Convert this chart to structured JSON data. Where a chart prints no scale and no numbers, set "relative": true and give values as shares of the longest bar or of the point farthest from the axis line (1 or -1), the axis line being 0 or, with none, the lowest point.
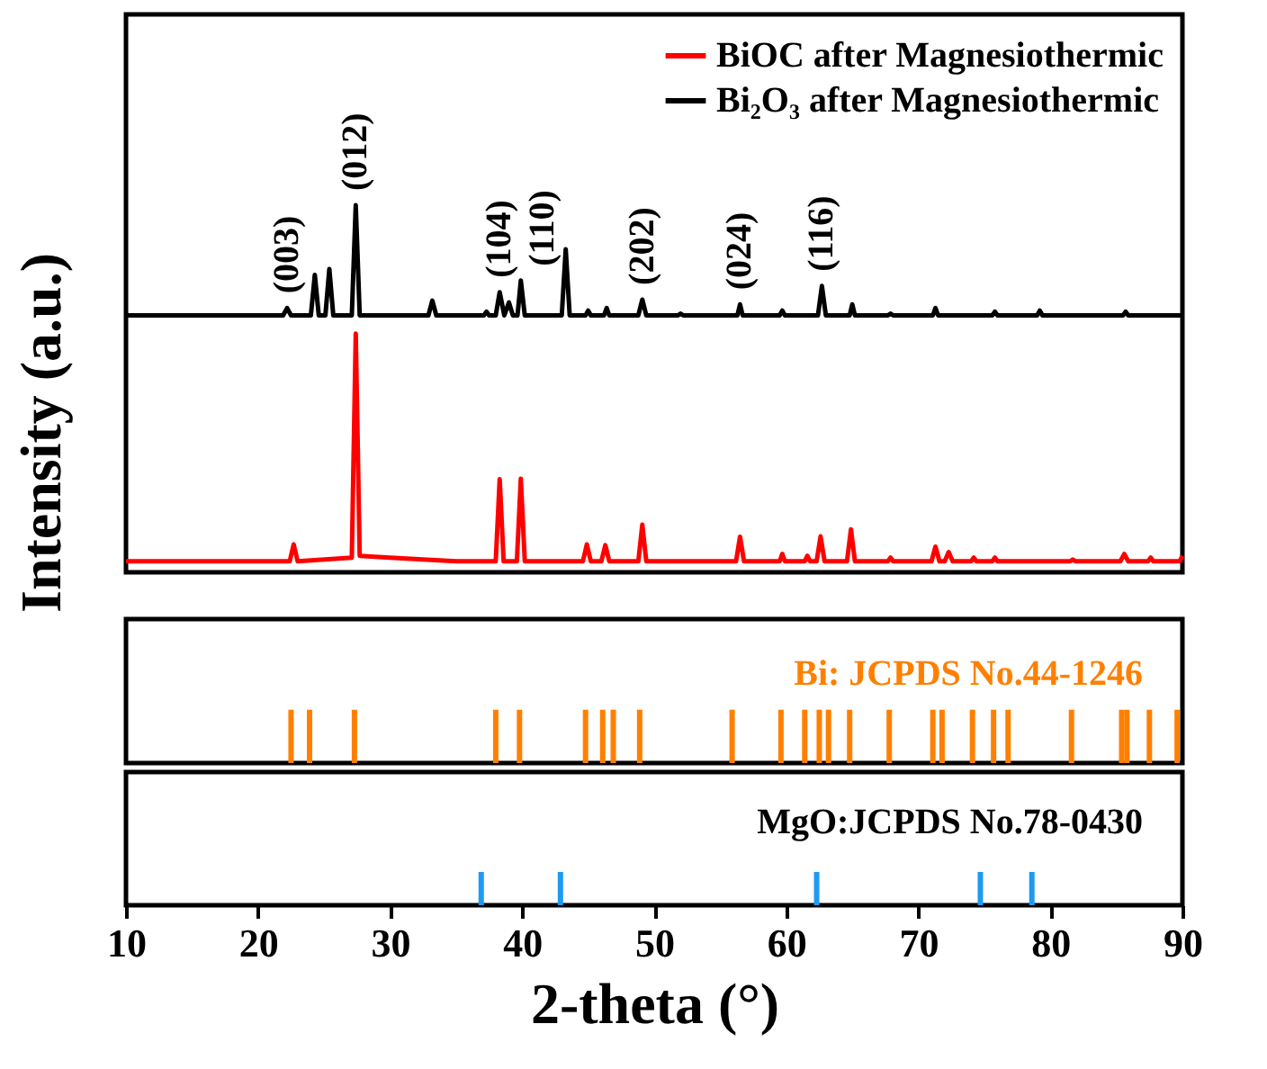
{
  "chart_data": [
    {
      "type": "line",
      "relative": true,
      "ylabel": "Intensity (a.u.)",
      "xlim": [
        10,
        90
      ],
      "tick_labels": false,
      "legend": "top right",
      "line_style": "solid",
      "marker": "none",
      "series": [
        {
          "name": "BiOC after Magnesiothermic",
          "color": "#ff0000",
          "x": [
            10,
            22.4,
            22.7,
            23.0,
            27.1,
            27.4,
            27.7,
            30,
            35,
            38.0,
            38.3,
            38.6,
            39.6,
            39.9,
            40.2,
            44.6,
            44.9,
            45.2,
            46.0,
            46.3,
            46.6,
            48.8,
            49.1,
            49.4,
            56.2,
            56.5,
            56.8,
            59.5,
            59.7,
            59.9,
            61.4,
            61.6,
            61.8,
            62.3,
            62.6,
            62.9,
            64.6,
            64.9,
            65.2,
            67.7,
            67.9,
            68.1,
            71.0,
            71.3,
            71.6,
            72.0,
            72.3,
            72.6,
            74.0,
            74.2,
            74.4,
            75.6,
            75.8,
            76.0,
            81.5,
            81.7,
            81.9,
            85.3,
            85.6,
            85.9,
            87.4,
            87.6,
            87.8,
            89.8,
            90
          ],
          "values": [
            0.03,
            0.03,
            0.076,
            0.03,
            0.04,
            0.65,
            0.045,
            0.04,
            0.03,
            0.03,
            0.254,
            0.03,
            0.03,
            0.255,
            0.03,
            0.03,
            0.076,
            0.03,
            0.03,
            0.074,
            0.03,
            0.03,
            0.13,
            0.03,
            0.03,
            0.097,
            0.03,
            0.03,
            0.05,
            0.03,
            0.03,
            0.045,
            0.03,
            0.03,
            0.098,
            0.03,
            0.03,
            0.117,
            0.03,
            0.03,
            0.04,
            0.03,
            0.03,
            0.07,
            0.03,
            0.03,
            0.055,
            0.03,
            0.03,
            0.04,
            0.03,
            0.03,
            0.04,
            0.03,
            0.03,
            0.035,
            0.03,
            0.03,
            0.05,
            0.03,
            0.03,
            0.04,
            0.03,
            0.03,
            0.045
          ]
        },
        {
          "name": "Bi₂O₃ after Magnesiothermic",
          "color": "#000000",
          "x": [
            10,
            21.9,
            22.2,
            22.5,
            24.0,
            24.3,
            24.6,
            25.1,
            25.4,
            25.7,
            27.1,
            27.4,
            27.7,
            32.9,
            33.2,
            33.5,
            37.1,
            37.3,
            37.5,
            38.0,
            38.3,
            38.65,
            39.0,
            39.3,
            39.65,
            39.9,
            40.2,
            43.0,
            43.3,
            43.6,
            44.8,
            45.0,
            45.2,
            46.2,
            46.4,
            46.6,
            48.8,
            49.1,
            49.4,
            51.8,
            52.0,
            52.2,
            56.3,
            56.5,
            56.7,
            59.5,
            59.7,
            59.9,
            62.4,
            62.7,
            63.0,
            64.8,
            65.0,
            65.2,
            67.7,
            67.9,
            68.1,
            71.1,
            71.3,
            71.5,
            75.6,
            75.8,
            76.0,
            79.0,
            79.2,
            79.4,
            85.5,
            85.7,
            85.9,
            90
          ],
          "values": [
            0.7,
            0.7,
            0.72,
            0.7,
            0.7,
            0.81,
            0.7,
            0.7,
            0.826,
            0.7,
            0.7,
            1.0,
            0.7,
            0.7,
            0.74,
            0.7,
            0.7,
            0.71,
            0.7,
            0.7,
            0.763,
            0.7,
            0.735,
            0.7,
            0.7,
            0.795,
            0.7,
            0.7,
            0.88,
            0.7,
            0.7,
            0.713,
            0.7,
            0.7,
            0.72,
            0.7,
            0.7,
            0.743,
            0.7,
            0.7,
            0.705,
            0.7,
            0.7,
            0.73,
            0.7,
            0.7,
            0.713,
            0.7,
            0.7,
            0.78,
            0.7,
            0.7,
            0.73,
            0.7,
            0.7,
            0.705,
            0.7,
            0.7,
            0.72,
            0.7,
            0.7,
            0.71,
            0.7,
            0.7,
            0.713,
            0.7,
            0.7,
            0.71,
            0.7,
            0.7
          ]
        }
      ],
      "annotations": [
        {
          "text": "(003)",
          "x": 22.2,
          "y": 0.72
        },
        {
          "text": "(012)",
          "x": 27.4,
          "y": 1.0
        },
        {
          "text": "(104)",
          "x": 38.3,
          "y": 0.763
        },
        {
          "text": "(110)",
          "x": 39.9,
          "y": 0.795
        },
        {
          "text": "(202)",
          "x": 49.1,
          "y": 0.743
        },
        {
          "text": "(024)",
          "x": 56.5,
          "y": 0.73
        },
        {
          "text": "(116)",
          "x": 62.7,
          "y": 0.78
        }
      ]
    },
    {
      "type": "bar",
      "relative": true,
      "title": "Bi: JCPDS No.44-1246",
      "xlim": [
        10,
        90
      ],
      "tick_labels": false,
      "series": [
        {
          "color": "#ff8000",
          "x": [
            22.5,
            23.9,
            27.3,
            38.0,
            39.8,
            44.8,
            46.1,
            46.9,
            48.9,
            55.9,
            59.6,
            61.4,
            62.5,
            63.2,
            64.8,
            67.8,
            71.1,
            71.8,
            74.1,
            75.7,
            76.8,
            81.6,
            85.4,
            85.8,
            87.5,
            89.6
          ],
          "values": [
            1,
            1,
            1,
            1,
            1,
            1,
            1,
            1,
            1,
            1,
            1,
            1,
            1,
            1,
            1,
            1,
            1,
            1,
            1,
            1,
            1,
            1,
            1,
            1,
            1,
            1
          ]
        }
      ]
    },
    {
      "type": "bar",
      "relative": true,
      "title": "MgO:JCPDS No.78-0430",
      "xlabel": "2-theta (°)",
      "xlim": [
        10,
        90
      ],
      "xticks": [
        10,
        20,
        30,
        40,
        50,
        60,
        70,
        80,
        90
      ],
      "tick_labels": "x",
      "series": [
        {
          "color": "#1e9bf0",
          "x": [
            36.9,
            42.9,
            62.3,
            74.7,
            78.6
          ],
          "values": [
            1,
            1,
            1,
            1,
            1
          ]
        }
      ]
    }
  ]
}
